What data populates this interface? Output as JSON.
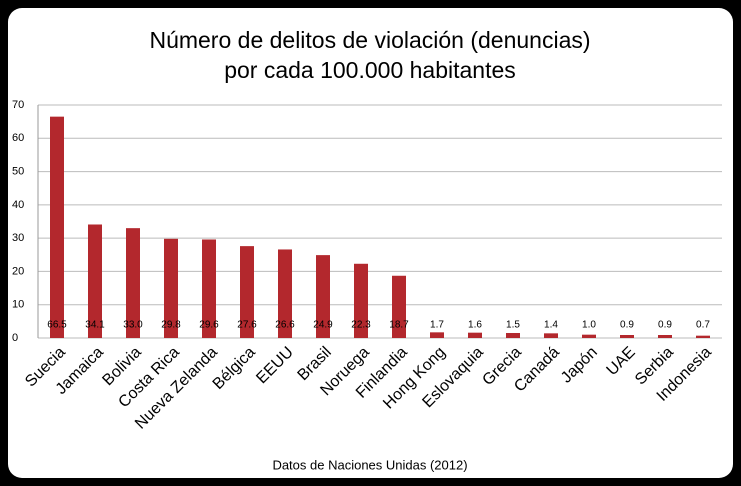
{
  "chart_data": {
    "type": "bar",
    "title": [
      "Número de delitos de violación (denuncias)",
      "por cada 100.000 habitantes"
    ],
    "source": "Datos de Naciones Unidas (2012)",
    "categories": [
      "Suecia",
      "Jamaica",
      "Bolivia",
      "Costa Rica",
      "Nueva Zelanda",
      "Bélgica",
      "EEUU",
      "Brasil",
      "Noruega",
      "Finlandia",
      "Hong Kong",
      "Eslovaquia",
      "Grecia",
      "Canadá",
      "Japón",
      "UAE",
      "Serbia",
      "Indonesia"
    ],
    "values": [
      66.5,
      34.1,
      33,
      29.8,
      29.6,
      27.6,
      26.6,
      24.9,
      22.3,
      18.7,
      1.7,
      1.6,
      1.5,
      1.4,
      1,
      0.9,
      0.9,
      0.7
    ],
    "value_labels": [
      "66.5",
      "34.1",
      "33.0",
      "29.8",
      "29.6",
      "27.6",
      "26.6",
      "24.9",
      "22.3",
      "18.7",
      "1.7",
      "1.6",
      "1.5",
      "1.4",
      "1.0",
      "0.9",
      "0.9",
      "0.7"
    ],
    "color": "#b3282d",
    "ylim": [
      0,
      70
    ],
    "yticks": [
      0,
      10,
      20,
      30,
      40,
      50,
      60,
      70
    ],
    "grid": true
  }
}
